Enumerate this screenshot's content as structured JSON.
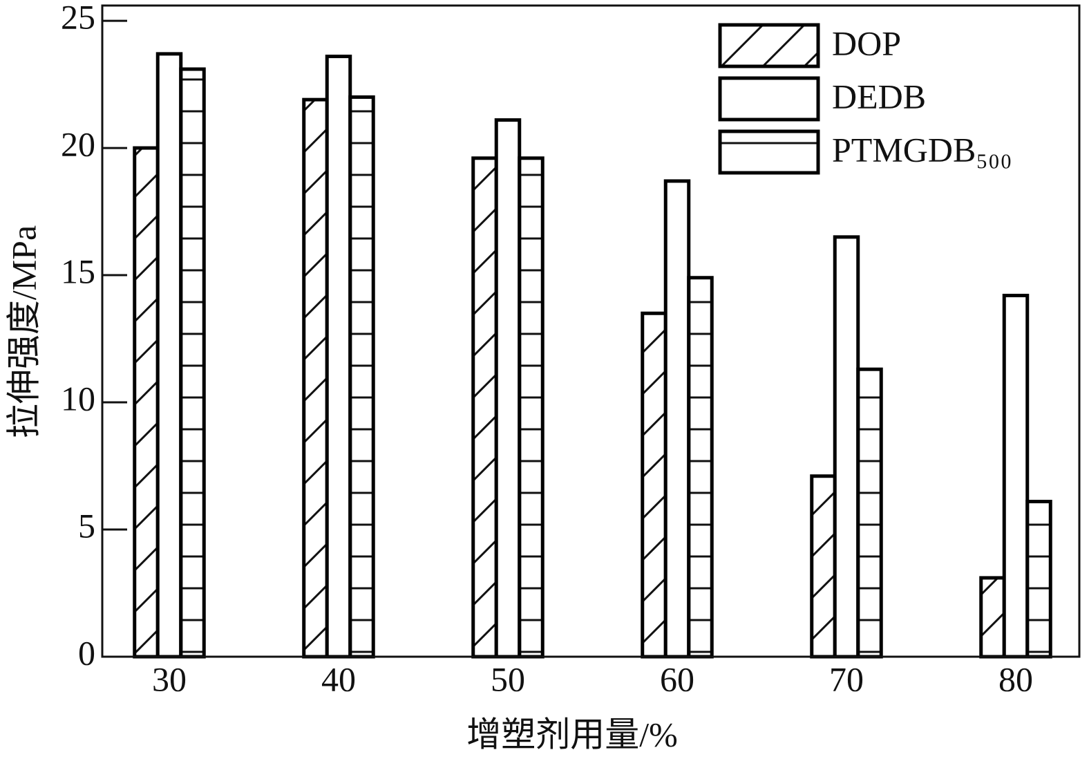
{
  "chart_data": {
    "type": "bar",
    "x_label": "增塑剂用量/%",
    "y_label": "拉伸强度/MPa",
    "categories": [
      "30",
      "40",
      "50",
      "60",
      "70",
      "80"
    ],
    "series": [
      {
        "name": "DOP",
        "color": "#000000",
        "hatch": "diagonal",
        "values": [
          20.0,
          21.9,
          19.6,
          13.5,
          7.1,
          3.1
        ]
      },
      {
        "name": "DEDB",
        "color": "#000000",
        "hatch": "none",
        "values": [
          23.7,
          23.6,
          21.1,
          18.7,
          16.5,
          14.2
        ]
      },
      {
        "name": "PTMGDB₅₀₀",
        "color": "#000000",
        "hatch": "horizontal",
        "values": [
          23.1,
          22.0,
          19.6,
          14.9,
          11.3,
          6.1
        ]
      }
    ],
    "ylim": [
      0,
      25.6
    ],
    "yticks": [
      0,
      5,
      10,
      15,
      20,
      25
    ],
    "legend": "upper-right",
    "grid": false
  }
}
